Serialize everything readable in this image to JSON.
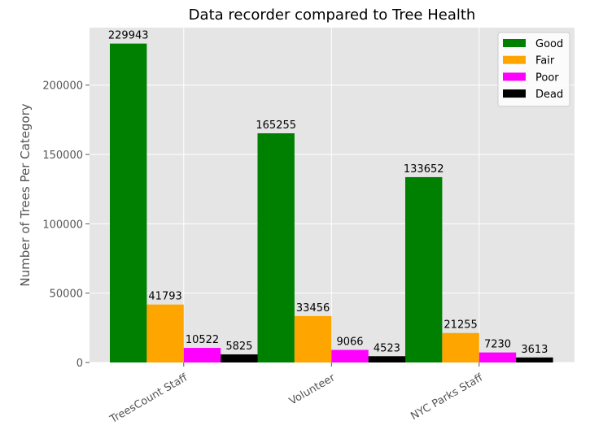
{
  "chart_data": {
    "type": "bar",
    "title": "Data recorder compared to Tree Health",
    "xlabel": "",
    "ylabel": "Number of Trees Per Category",
    "categories": [
      "TreesCount Staff",
      "Volunteer",
      "NYC Parks Staff"
    ],
    "series": [
      {
        "name": "Good",
        "color": "#008000",
        "values": [
          229943,
          165255,
          133652
        ]
      },
      {
        "name": "Fair",
        "color": "#FFA500",
        "values": [
          41793,
          33456,
          21255
        ]
      },
      {
        "name": "Poor",
        "color": "#FF00FF",
        "values": [
          10522,
          9066,
          7230
        ]
      },
      {
        "name": "Dead",
        "color": "#000000",
        "values": [
          5825,
          4523,
          3613
        ]
      }
    ],
    "ylim": [
      0,
      241440
    ],
    "yticks": [
      0,
      50000,
      100000,
      150000,
      200000
    ],
    "grid": true,
    "legend": "top-right",
    "background": "#E5E5E5"
  }
}
